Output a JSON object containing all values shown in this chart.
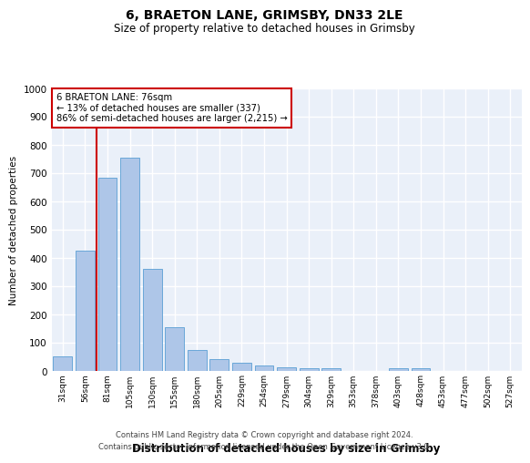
{
  "title": "6, BRAETON LANE, GRIMSBY, DN33 2LE",
  "subtitle": "Size of property relative to detached houses in Grimsby",
  "xlabel": "Distribution of detached houses by size in Grimsby",
  "ylabel": "Number of detached properties",
  "categories": [
    "31sqm",
    "56sqm",
    "81sqm",
    "105sqm",
    "130sqm",
    "155sqm",
    "180sqm",
    "205sqm",
    "229sqm",
    "254sqm",
    "279sqm",
    "304sqm",
    "329sqm",
    "353sqm",
    "378sqm",
    "403sqm",
    "428sqm",
    "453sqm",
    "477sqm",
    "502sqm",
    "527sqm"
  ],
  "values": [
    50,
    425,
    685,
    755,
    360,
    155,
    75,
    42,
    30,
    20,
    12,
    10,
    8,
    0,
    0,
    10,
    10,
    0,
    0,
    0,
    0
  ],
  "bar_color": "#aec6e8",
  "bar_edge_color": "#5a9fd4",
  "property_line_label": "6 BRAETON LANE: 76sqm",
  "annotation_line1": "← 13% of detached houses are smaller (337)",
  "annotation_line2": "86% of semi-detached houses are larger (2,215) →",
  "annotation_box_color": "#ffffff",
  "annotation_box_edge": "#cc0000",
  "vline_color": "#cc0000",
  "vline_x_index": 1.5,
  "ylim": [
    0,
    1000
  ],
  "yticks": [
    0,
    100,
    200,
    300,
    400,
    500,
    600,
    700,
    800,
    900,
    1000
  ],
  "bg_color": "#eaf0f9",
  "grid_color": "#ffffff",
  "footer_line1": "Contains HM Land Registry data © Crown copyright and database right 2024.",
  "footer_line2": "Contains public sector information licensed under the Open Government Licence v3.0."
}
